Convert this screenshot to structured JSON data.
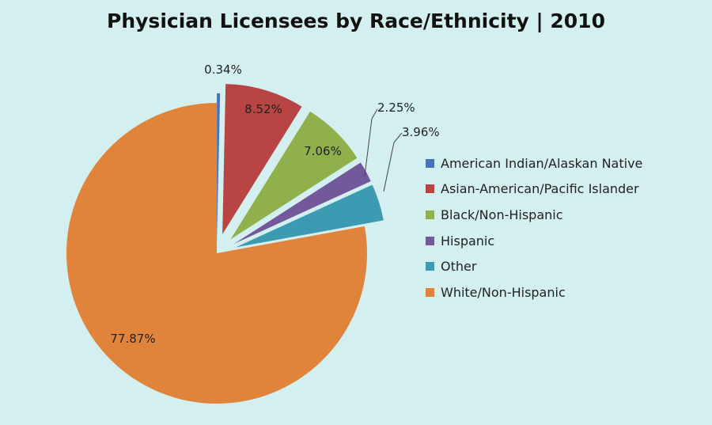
{
  "chart_data": {
    "type": "pie",
    "title": "Physician Licensees by Race/Ethnicity | 2010",
    "legend_position": "right",
    "series": [
      {
        "name": "American Indian/Alaskan Native",
        "value": 0.34,
        "label": "0.34%",
        "color": "#4a72b8"
      },
      {
        "name": "Asian-American/Pacific Islander",
        "value": 8.52,
        "label": "8.52%",
        "color": "#b84443"
      },
      {
        "name": "Black/Non-Hispanic",
        "value": 7.06,
        "label": "7.06%",
        "color": "#8fb04a"
      },
      {
        "name": "Hispanic",
        "value": 2.25,
        "label": "2.25%",
        "color": "#73589a"
      },
      {
        "name": "Other",
        "value": 3.96,
        "label": "3.96%",
        "color": "#3c9bb3"
      },
      {
        "name": "White/Non-Hispanic",
        "value": 77.87,
        "label": "77.87%",
        "color": "#e0843c"
      }
    ]
  }
}
